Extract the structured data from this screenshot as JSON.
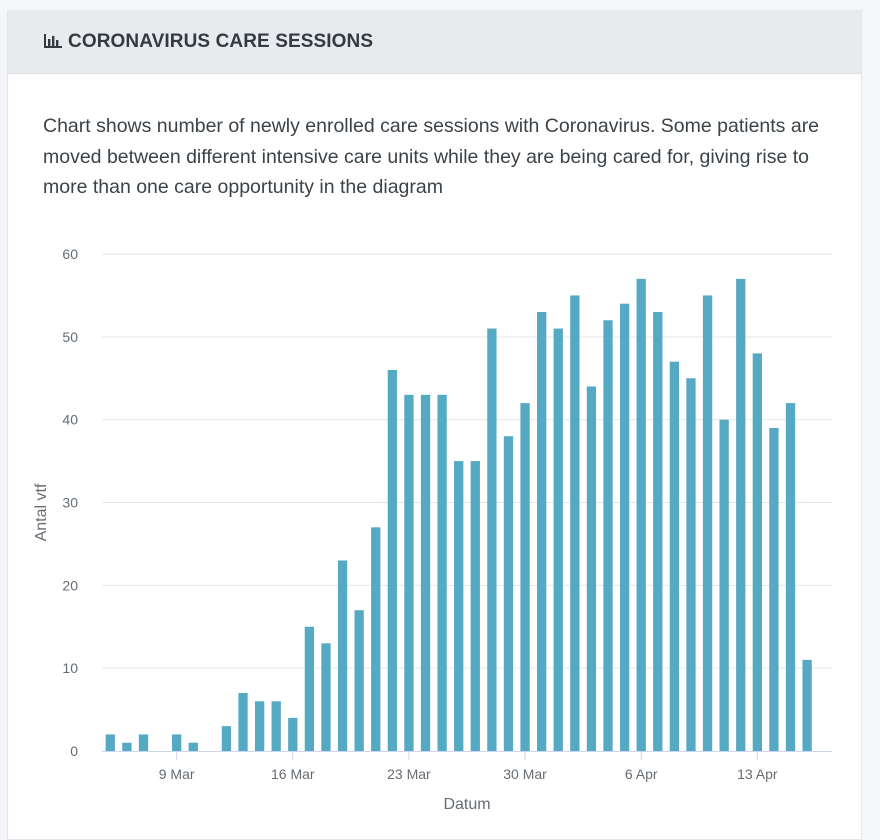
{
  "header": {
    "title": "CORONAVIRUS CARE SESSIONS",
    "icon": "bar-chart-icon"
  },
  "description": "Chart shows number of newly enrolled care sessions with Coronavirus. Some patients are moved between different intensive care units while they are being cared for, giving rise to more than one care opportunity in the diagram",
  "colors": {
    "bar": "#55a9c3",
    "grid": "#e6e6e6",
    "axis": "#ccd6eb"
  },
  "chart_data": {
    "type": "bar",
    "title": "",
    "xlabel": "Datum",
    "ylabel": "Antal vtf",
    "ylim": [
      0,
      60
    ],
    "yticks": [
      0,
      10,
      20,
      30,
      40,
      50,
      60
    ],
    "grid": true,
    "x_tick_labels": [
      "9 Mar",
      "16 Mar",
      "23 Mar",
      "30 Mar",
      "6 Apr",
      "13 Apr"
    ],
    "categories": [
      "5 Mar",
      "6 Mar",
      "7 Mar",
      "8 Mar",
      "9 Mar",
      "10 Mar",
      "11 Mar",
      "12 Mar",
      "13 Mar",
      "14 Mar",
      "15 Mar",
      "16 Mar",
      "17 Mar",
      "18 Mar",
      "19 Mar",
      "20 Mar",
      "21 Mar",
      "22 Mar",
      "23 Mar",
      "24 Mar",
      "25 Mar",
      "26 Mar",
      "27 Mar",
      "28 Mar",
      "29 Mar",
      "30 Mar",
      "31 Mar",
      "1 Apr",
      "2 Apr",
      "3 Apr",
      "4 Apr",
      "5 Apr",
      "6 Apr",
      "7 Apr",
      "8 Apr",
      "9 Apr",
      "10 Apr",
      "11 Apr",
      "12 Apr",
      "13 Apr",
      "14 Apr",
      "15 Apr",
      "16 Apr",
      "17 Apr"
    ],
    "values": [
      2,
      1,
      2,
      0,
      2,
      1,
      0,
      3,
      7,
      6,
      6,
      4,
      15,
      13,
      23,
      17,
      27,
      46,
      43,
      43,
      43,
      35,
      35,
      51,
      38,
      42,
      53,
      51,
      55,
      44,
      52,
      54,
      57,
      53,
      47,
      45,
      55,
      40,
      57,
      48,
      39,
      42,
      11,
      0
    ]
  }
}
